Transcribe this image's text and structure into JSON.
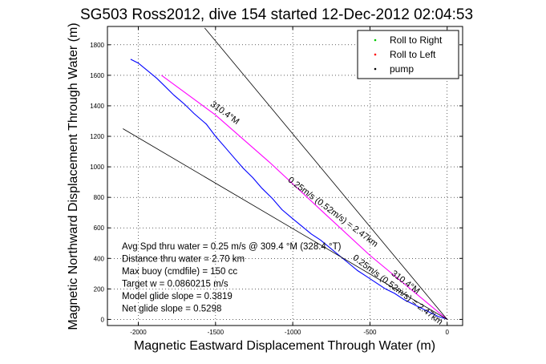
{
  "chart_data": {
    "type": "line",
    "title": "SG503 Ross2012, dive 154 started 12-Dec-2012 02:04:53",
    "xlabel": "Magnetic Eastward Displacement Through Water (m)",
    "ylabel": "Magnetic Northward Displacement Through Water (m)",
    "xlim": [
      -2200,
      100
    ],
    "ylim": [
      -40,
      1920
    ],
    "x_ticks": [
      -2000,
      -1500,
      -1000,
      -500,
      0
    ],
    "x_tick_labels": [
      "-2000",
      "-1500",
      "-1000",
      "-500",
      "0"
    ],
    "y_ticks": [
      0,
      200,
      400,
      600,
      800,
      1000,
      1200,
      1400,
      1600,
      1800
    ],
    "y_tick_labels": [
      "0",
      "200",
      "400",
      "600",
      "800",
      "1000",
      "1200",
      "1400",
      "1600",
      "1800"
    ],
    "grid": true,
    "legend": {
      "placement": "top-right",
      "entries": [
        {
          "label": "Roll to Right",
          "color": "#00cc00",
          "marker": "dot"
        },
        {
          "label": "Roll to Left",
          "color": "#ff0000",
          "marker": "dot"
        },
        {
          "label": "pump",
          "color": "#000000",
          "marker": "dot"
        }
      ]
    },
    "series": [
      {
        "color": "#0000ff",
        "x": [
          -2050,
          -2000,
          -1940,
          -1880,
          -1830,
          -1770,
          -1700,
          -1640,
          -1560,
          -1500,
          -1440,
          -1380,
          -1320,
          -1260,
          -1200,
          -1130,
          -1070,
          -1000,
          -940,
          -880,
          -820,
          -760,
          -700,
          -640,
          -580,
          -520,
          -460,
          -400,
          -340,
          -280,
          -220,
          -160,
          -100,
          -60,
          -30,
          -10,
          0
        ],
        "y": [
          1705,
          1680,
          1630,
          1580,
          1530,
          1470,
          1410,
          1350,
          1280,
          1200,
          1130,
          1060,
          990,
          930,
          860,
          790,
          720,
          660,
          610,
          560,
          520,
          470,
          420,
          370,
          320,
          280,
          240,
          200,
          170,
          130,
          100,
          70,
          40,
          20,
          10,
          5,
          0
        ]
      },
      {
        "color": "#ff00ff",
        "x": [
          -1850,
          -1500,
          -1150,
          -800,
          -500,
          -250,
          0
        ],
        "y": [
          1600,
          1340,
          1030,
          700,
          420,
          210,
          0
        ]
      },
      {
        "color": "#000000",
        "x": [
          -2100,
          0
        ],
        "y": [
          1250,
          0
        ]
      },
      {
        "color": "#000000",
        "x": [
          -1570,
          0
        ],
        "y": [
          1910,
          0
        ]
      }
    ],
    "annotations": [
      {
        "text": "310.4°M",
        "x": -1450,
        "y": 1340,
        "angle": 36
      },
      {
        "text": "0.25m/s (0.52m/s) = 2.47km",
        "x": -750,
        "y": 690,
        "angle": 37
      },
      {
        "text": "310.4°M",
        "x": -280,
        "y": 230,
        "angle": 37
      },
      {
        "text": "0.25m/s (0.52m/s) = 2.47km",
        "x": -330,
        "y": 180,
        "angle": 37
      }
    ],
    "stats": [
      "Avg Spd thru water =  0.25 m/s @ 309.4 °M (328.4 °T)",
      "Distance thru water =  2.70 km",
      "Max buoy (cmdfile) = 150 cc",
      "Target w = 0.0860215 m/s",
      "Model glide slope = 0.3819",
      "Net glide slope = 0.5298"
    ]
  }
}
